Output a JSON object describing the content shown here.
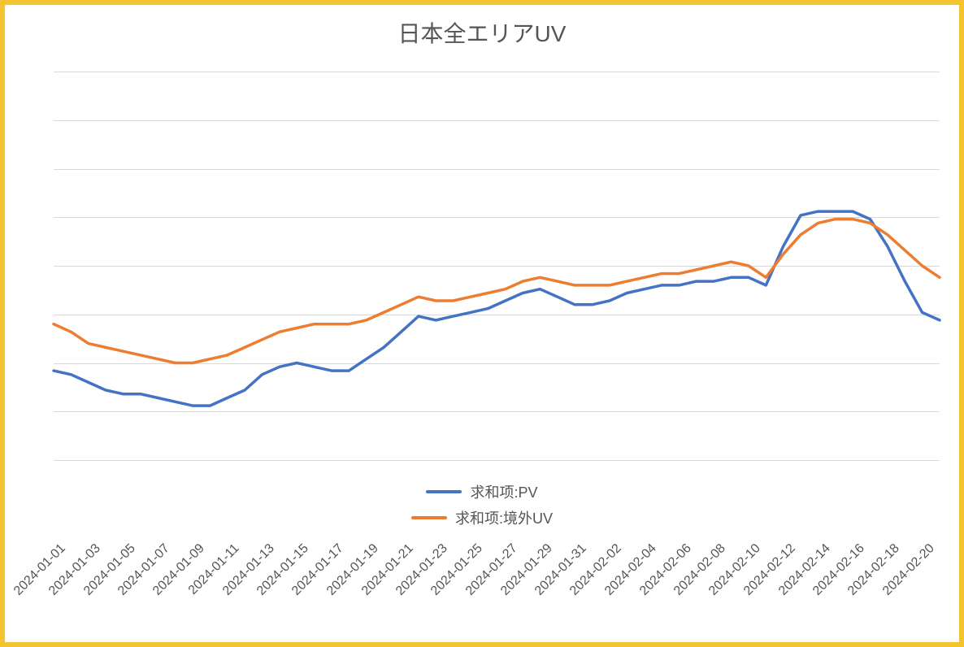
{
  "chart": {
    "type": "line",
    "title": "日本全エリアUV",
    "title_fontsize": 28,
    "title_color": "#555555",
    "background_color": "#ffffff",
    "frame_border_color": "#f4c430",
    "frame_border_width": 6,
    "grid_color": "#d9d9d9",
    "line_width": 3.5,
    "axis_label_color": "#555555",
    "axis_label_fontsize": 16,
    "legend_fontsize": 18,
    "legend_position": "bottom-center",
    "ylim": [
      0,
      100
    ],
    "ygrid_steps": 8,
    "dates": [
      "2024-01-01",
      "2024-01-02",
      "2024-01-03",
      "2024-01-04",
      "2024-01-05",
      "2024-01-06",
      "2024-01-07",
      "2024-01-08",
      "2024-01-09",
      "2024-01-10",
      "2024-01-11",
      "2024-01-12",
      "2024-01-13",
      "2024-01-14",
      "2024-01-15",
      "2024-01-16",
      "2024-01-17",
      "2024-01-18",
      "2024-01-19",
      "2024-01-20",
      "2024-01-21",
      "2024-01-22",
      "2024-01-23",
      "2024-01-24",
      "2024-01-25",
      "2024-01-26",
      "2024-01-27",
      "2024-01-28",
      "2024-01-29",
      "2024-01-30",
      "2024-01-31",
      "2024-02-01",
      "2024-02-02",
      "2024-02-03",
      "2024-02-04",
      "2024-02-05",
      "2024-02-06",
      "2024-02-07",
      "2024-02-08",
      "2024-02-09",
      "2024-02-10",
      "2024-02-11",
      "2024-02-12",
      "2024-02-13",
      "2024-02-14",
      "2024-02-15",
      "2024-02-16",
      "2024-02-17",
      "2024-02-18",
      "2024-02-19",
      "2024-02-20",
      "2024-02-21"
    ],
    "xtick_labels": [
      "2024-01-01",
      "2024-01-03",
      "2024-01-05",
      "2024-01-07",
      "2024-01-09",
      "2024-01-11",
      "2024-01-13",
      "2024-01-15",
      "2024-01-17",
      "2024-01-19",
      "2024-01-21",
      "2024-01-23",
      "2024-01-25",
      "2024-01-27",
      "2024-01-29",
      "2024-01-31",
      "2024-02-02",
      "2024-02-04",
      "2024-02-06",
      "2024-02-08",
      "2024-02-10",
      "2024-02-12",
      "2024-02-14",
      "2024-02-16",
      "2024-02-18",
      "2024-02-20"
    ],
    "series": [
      {
        "name": "求和项:PV",
        "color": "#4472c4",
        "values": [
          23,
          22,
          20,
          18,
          17,
          17,
          16,
          15,
          14,
          14,
          16,
          18,
          22,
          24,
          25,
          24,
          23,
          23,
          26,
          29,
          33,
          37,
          36,
          37,
          38,
          39,
          41,
          43,
          44,
          42,
          40,
          40,
          41,
          43,
          44,
          45,
          45,
          46,
          46,
          47,
          47,
          45,
          55,
          63,
          64,
          64,
          64,
          62,
          55,
          46,
          38,
          36
        ]
      },
      {
        "name": "求和项:境外UV",
        "color": "#ed7d31",
        "values": [
          35,
          33,
          30,
          29,
          28,
          27,
          26,
          25,
          25,
          26,
          27,
          29,
          31,
          33,
          34,
          35,
          35,
          35,
          36,
          38,
          40,
          42,
          41,
          41,
          42,
          43,
          44,
          46,
          47,
          46,
          45,
          45,
          45,
          46,
          47,
          48,
          48,
          49,
          50,
          51,
          50,
          47,
          53,
          58,
          61,
          62,
          62,
          61,
          58,
          54,
          50,
          47
        ]
      }
    ]
  }
}
